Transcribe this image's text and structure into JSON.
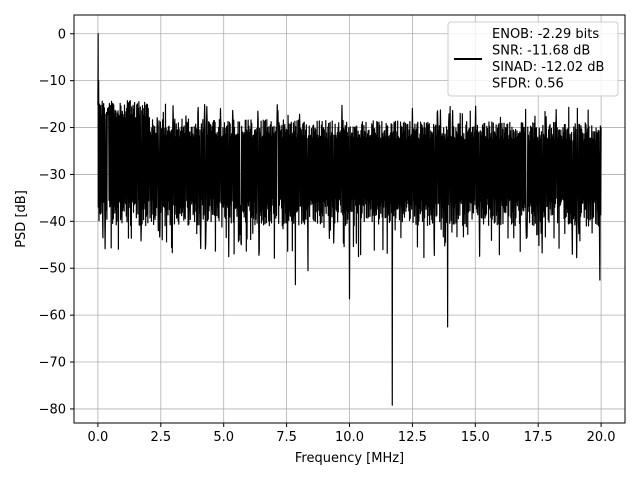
{
  "chart_data": {
    "type": "line",
    "title": "",
    "xlabel": "Frequency [MHz]",
    "ylabel": "PSD [dB]",
    "xlim": [
      -0.95,
      20.95
    ],
    "ylim": [
      -83,
      4
    ],
    "x_ticks": [
      0.0,
      2.5,
      5.0,
      7.5,
      10.0,
      12.5,
      15.0,
      17.5,
      20.0
    ],
    "x_tick_labels": [
      "0.0",
      "2.5",
      "5.0",
      "7.5",
      "10.0",
      "12.5",
      "15.0",
      "17.5",
      "20.0"
    ],
    "y_ticks": [
      0,
      -10,
      -20,
      -30,
      -40,
      -50,
      -60,
      -70,
      -80
    ],
    "y_tick_labels": [
      "0",
      "−10",
      "−20",
      "−30",
      "−40",
      "−50",
      "−60",
      "−70",
      "−80"
    ],
    "grid": true,
    "legend_position": "top-right",
    "series": [
      {
        "name": "ENOB: -2.29 bits\nSNR: -11.68 dB\nSINAD: -12.02 dB\nSFDR: 0.56",
        "color": "#000000",
        "note": "noise floor spectrum; envelope approx -15 to -45 dB with dips",
        "envelope_top": -20,
        "envelope_bottom": -38,
        "start_peak": {
          "x": 0.0,
          "y": 0
        },
        "dips": [
          {
            "x": 7.85,
            "y": -53.5
          },
          {
            "x": 8.35,
            "y": -50.5
          },
          {
            "x": 10.0,
            "y": -56.5
          },
          {
            "x": 11.7,
            "y": -79.2
          },
          {
            "x": 13.9,
            "y": -62.5
          },
          {
            "x": 19.95,
            "y": -52.5
          }
        ]
      }
    ]
  },
  "legend": {
    "lines": [
      "ENOB: -2.29 bits",
      "SNR: -11.68 dB",
      "SINAD: -12.02 dB",
      "SFDR: 0.56"
    ]
  }
}
